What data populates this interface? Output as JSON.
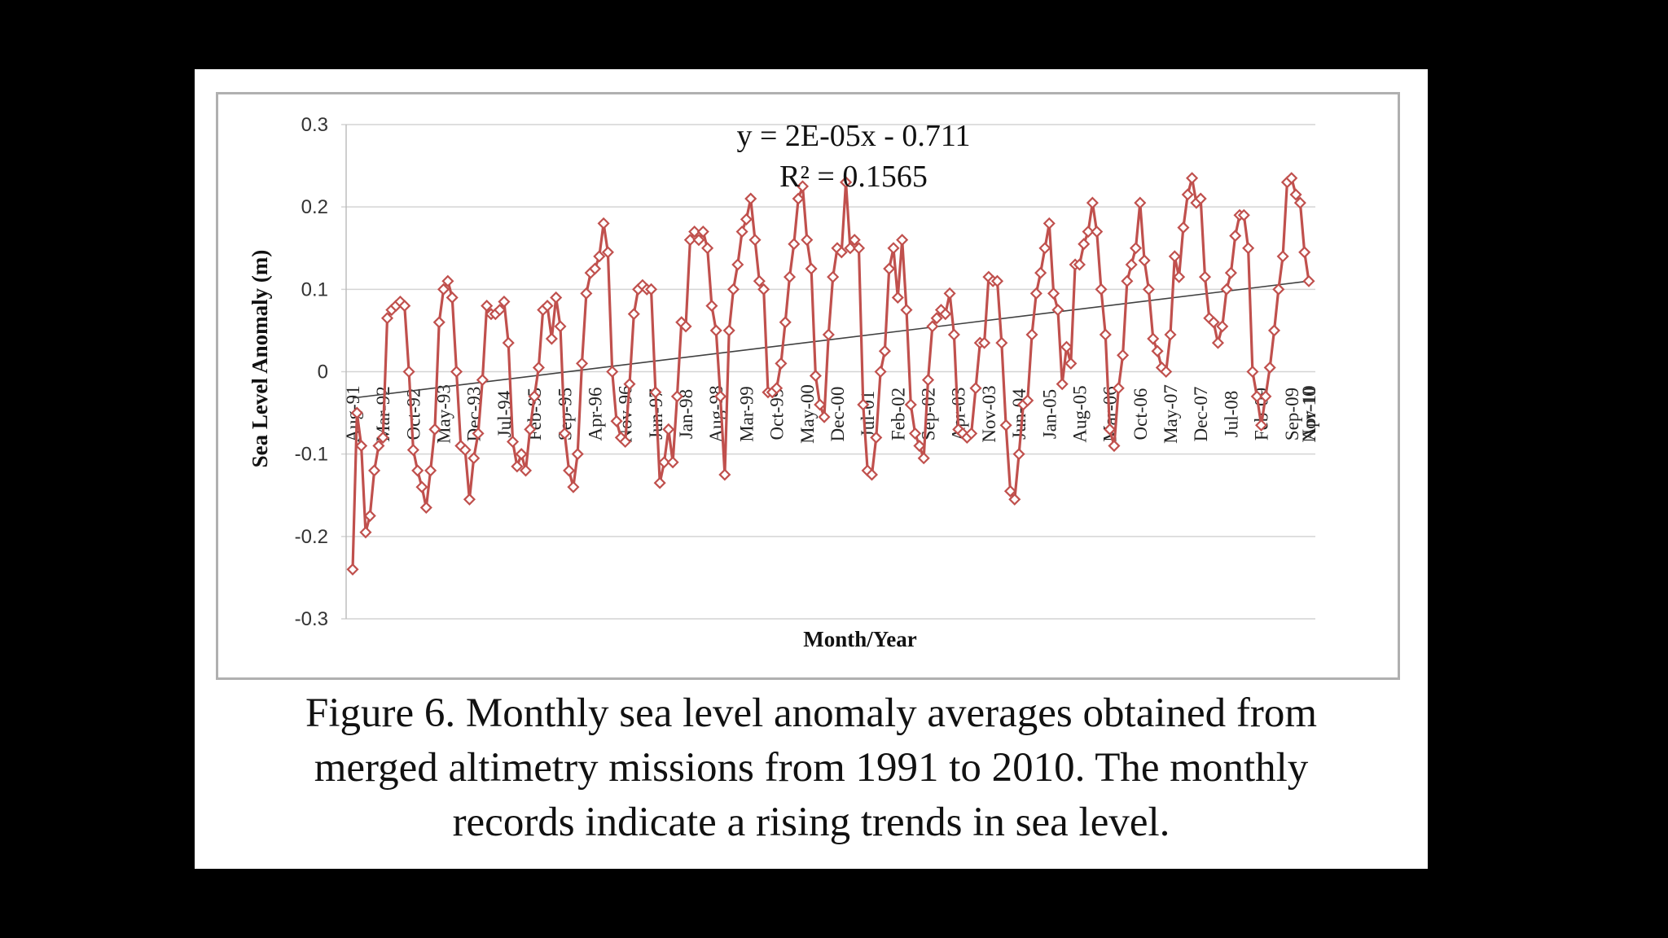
{
  "chart_data": {
    "type": "line",
    "title": "",
    "xlabel": "Month/Year",
    "ylabel": "Sea Level Anomaly (m)",
    "ylim": [
      -0.3,
      0.3
    ],
    "yticks": [
      "0.3",
      "0.2",
      "0.1",
      "0",
      "-0.1",
      "-0.2",
      "-0.3"
    ],
    "grid": true,
    "legend": "none",
    "x_start": "Aug-91",
    "x_end": "Nov-10",
    "x_tick_labels": [
      "Aug-91",
      "Mar-92",
      "Oct-92",
      "May-93",
      "Dec-93",
      "Jul-94",
      "Feb-95",
      "Sep-95",
      "Apr-96",
      "Nov-96",
      "Jun-97",
      "Jan-98",
      "Aug-98",
      "Mar-99",
      "Oct-99",
      "May-00",
      "Dec-00",
      "Jul-01",
      "Feb-02",
      "Sep-02",
      "Apr-03",
      "Nov-03",
      "Jun-04",
      "Jan-05",
      "Aug-05",
      "Mar-06",
      "Oct-06",
      "May-07",
      "Dec-07",
      "Jul-08",
      "Feb-09",
      "Sep-09",
      "Apr-10",
      "Nov-10"
    ],
    "series": [
      {
        "color": "#c0504d",
        "marker": "diamond",
        "values": [
          -0.24,
          -0.05,
          -0.09,
          -0.195,
          -0.175,
          -0.12,
          -0.09,
          -0.08,
          0.065,
          0.075,
          0.08,
          0.085,
          0.08,
          0.0,
          -0.095,
          -0.12,
          -0.14,
          -0.165,
          -0.12,
          -0.07,
          0.06,
          0.1,
          0.11,
          0.09,
          0.0,
          -0.09,
          -0.095,
          -0.155,
          -0.105,
          -0.075,
          -0.01,
          0.08,
          0.07,
          0.07,
          0.075,
          0.085,
          0.035,
          -0.085,
          -0.115,
          -0.1,
          -0.12,
          -0.07,
          -0.03,
          0.005,
          0.075,
          0.08,
          0.04,
          0.09,
          0.055,
          -0.075,
          -0.12,
          -0.14,
          -0.1,
          0.01,
          0.095,
          0.12,
          0.125,
          0.14,
          0.18,
          0.145,
          0.0,
          -0.06,
          -0.08,
          -0.085,
          -0.015,
          0.07,
          0.1,
          0.105,
          0.1,
          0.1,
          -0.025,
          -0.135,
          -0.11,
          -0.07,
          -0.11,
          -0.03,
          0.06,
          0.055,
          0.16,
          0.17,
          0.16,
          0.17,
          0.15,
          0.08,
          0.05,
          -0.03,
          -0.125,
          0.05,
          0.1,
          0.13,
          0.17,
          0.185,
          0.21,
          0.16,
          0.11,
          0.1,
          -0.025,
          -0.025,
          -0.02,
          0.01,
          0.06,
          0.115,
          0.155,
          0.21,
          0.225,
          0.16,
          0.125,
          -0.005,
          -0.04,
          -0.055,
          0.045,
          0.115,
          0.15,
          0.145,
          0.23,
          0.15,
          0.16,
          0.15,
          -0.04,
          -0.12,
          -0.125,
          -0.08,
          0.0,
          0.025,
          0.125,
          0.15,
          0.09,
          0.16,
          0.075,
          -0.04,
          -0.075,
          -0.09,
          -0.105,
          -0.01,
          0.055,
          0.065,
          0.075,
          0.07,
          0.095,
          0.045,
          -0.07,
          -0.075,
          -0.08,
          -0.075,
          -0.02,
          0.035,
          0.035,
          0.115,
          0.11,
          0.11,
          0.035,
          -0.065,
          -0.145,
          -0.155,
          -0.1,
          -0.04,
          -0.035,
          0.045,
          0.095,
          0.12,
          0.15,
          0.18,
          0.095,
          0.075,
          -0.015,
          0.03,
          0.01,
          0.13,
          0.13,
          0.155,
          0.17,
          0.205,
          0.17,
          0.1,
          0.045,
          -0.07,
          -0.09,
          -0.02,
          0.02,
          0.11,
          0.13,
          0.15,
          0.205,
          0.135,
          0.1,
          0.04,
          0.025,
          0.005,
          0.0,
          0.045,
          0.14,
          0.115,
          0.175,
          0.215,
          0.235,
          0.205,
          0.21,
          0.115,
          0.065,
          0.06,
          0.035,
          0.055,
          0.1,
          0.12,
          0.165,
          0.19,
          0.19,
          0.15,
          0.0,
          -0.03,
          -0.065,
          -0.03,
          0.005,
          0.05,
          0.1,
          0.14,
          0.23,
          0.235,
          0.215,
          0.205,
          0.145,
          0.11
        ]
      }
    ],
    "trendline": {
      "equation": "y = 2E-05x - 0.711",
      "r_squared": "R² = 0.1565",
      "start_y": -0.032,
      "end_y": 0.11,
      "color": "#404040"
    }
  },
  "caption": {
    "line1": "Figure 6. Monthly sea level anomaly averages obtained from",
    "line2": "merged altimetry missions from 1991 to 2010. The monthly",
    "line3": "records indicate a rising trends in sea level."
  }
}
